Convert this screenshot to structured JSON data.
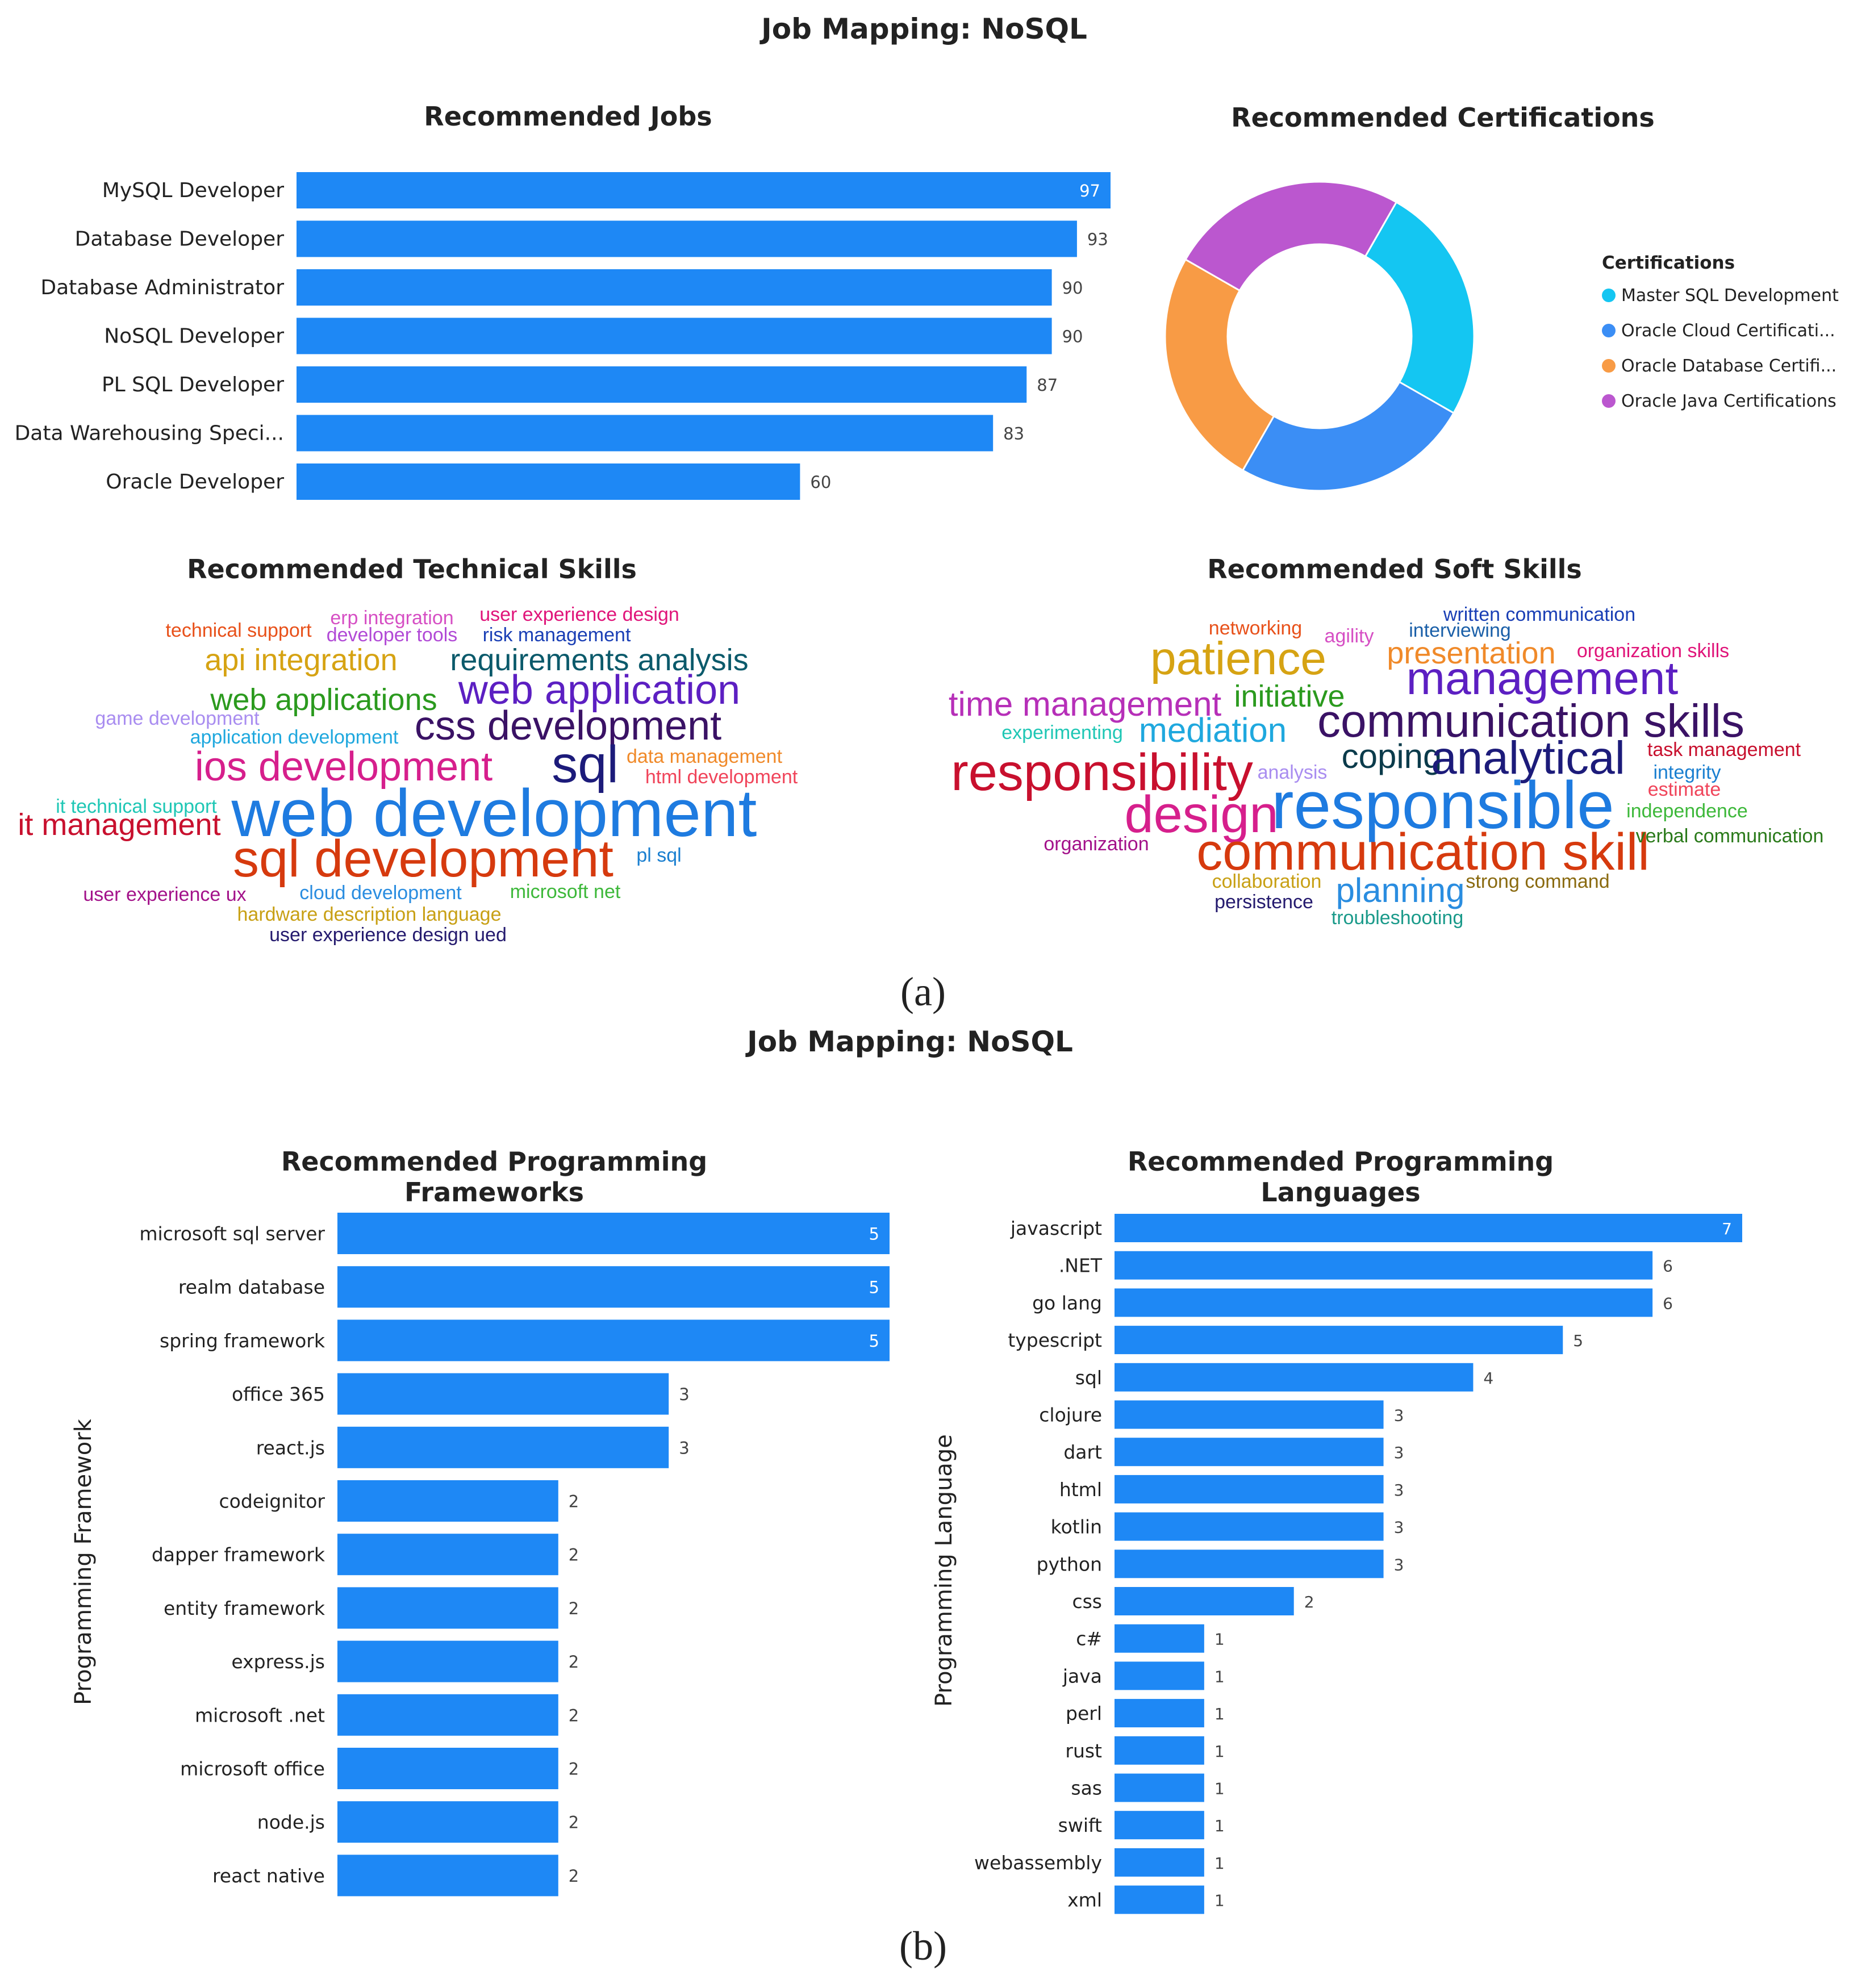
{
  "panel_a": {
    "title": "Job Mapping: NoSQL",
    "label": "(a)"
  },
  "panel_b": {
    "title": "Job Mapping: NoSQL",
    "label": "(b)"
  },
  "colors": {
    "bar": "#1e88f5",
    "cert_master_sql": "#14c6f2",
    "cert_oracle_cloud": "#3b8ef5",
    "cert_oracle_db": "#f89b45",
    "cert_oracle_java": "#bb57cf"
  },
  "chart_data": [
    {
      "id": "jobs",
      "type": "bar",
      "orientation": "horizontal",
      "title": "Recommended Jobs",
      "categories": [
        "MySQL Developer",
        "Database Developer",
        "Database Administrator",
        "NoSQL Developer",
        "PL SQL Developer",
        "Data Warehousing Speci...",
        "Oracle Developer"
      ],
      "values": [
        97,
        93,
        90,
        90,
        87,
        83,
        60
      ],
      "xlim": [
        0,
        97
      ]
    },
    {
      "id": "certifications",
      "type": "pie",
      "donut": true,
      "title": "Recommended Certifications",
      "legend_title": "Certifications",
      "legend_position": "right",
      "labels": [
        "Master SQL Development",
        "Oracle Cloud Certificati...",
        "Oracle Database Certifi...",
        "Oracle Java Certifications"
      ],
      "values": [
        25,
        25,
        25,
        25
      ]
    },
    {
      "id": "technical_skills",
      "type": "wordcloud",
      "title": "Recommended Technical Skills",
      "words": [
        {
          "text": "technical support",
          "weight": 2,
          "color": "#e8511a"
        },
        {
          "text": "erp integration",
          "weight": 2,
          "color": "#d64fc4"
        },
        {
          "text": "user experience design",
          "weight": 2,
          "color": "#e0157a"
        },
        {
          "text": "developer tools",
          "weight": 2,
          "color": "#b14ad6"
        },
        {
          "text": "risk management",
          "weight": 2,
          "color": "#1a3fb5"
        },
        {
          "text": "api integration",
          "weight": 4,
          "color": "#d6a313"
        },
        {
          "text": "requirements analysis",
          "weight": 4,
          "color": "#0b5a6b"
        },
        {
          "text": "web applications",
          "weight": 4,
          "color": "#2b9a1e"
        },
        {
          "text": "web application",
          "weight": 6,
          "color": "#5c1fc2"
        },
        {
          "text": "game development",
          "weight": 2,
          "color": "#a98df0"
        },
        {
          "text": "css development",
          "weight": 6,
          "color": "#3a1265"
        },
        {
          "text": "application development",
          "weight": 2,
          "color": "#1fa8de"
        },
        {
          "text": "ios development",
          "weight": 6,
          "color": "#d61f8c"
        },
        {
          "text": "sql",
          "weight": 8,
          "color": "#1c1b7a"
        },
        {
          "text": "data management",
          "weight": 2,
          "color": "#f08a2a"
        },
        {
          "text": "html development",
          "weight": 2,
          "color": "#f0445a"
        },
        {
          "text": "it technical support",
          "weight": 2,
          "color": "#1fc7b5"
        },
        {
          "text": "it management",
          "weight": 4,
          "color": "#c8102e"
        },
        {
          "text": "web development",
          "weight": 10,
          "color": "#1e7be0"
        },
        {
          "text": "sql development",
          "weight": 8,
          "color": "#d63a0e"
        },
        {
          "text": "pl sql",
          "weight": 2,
          "color": "#1a7fd0"
        },
        {
          "text": "user experience ux",
          "weight": 2,
          "color": "#a3128a"
        },
        {
          "text": "cloud development",
          "weight": 2,
          "color": "#2a8de0"
        },
        {
          "text": "microsoft net",
          "weight": 2,
          "color": "#3db83a"
        },
        {
          "text": "hardware description language",
          "weight": 2,
          "color": "#c8a015"
        },
        {
          "text": "user experience design ued",
          "weight": 2,
          "color": "#241a6e"
        }
      ]
    },
    {
      "id": "soft_skills",
      "type": "wordcloud",
      "title": "Recommended Soft Skills",
      "words": [
        {
          "text": "written communication",
          "weight": 2,
          "color": "#1a3fb5"
        },
        {
          "text": "networking",
          "weight": 2,
          "color": "#e8511a"
        },
        {
          "text": "agility",
          "weight": 2,
          "color": "#d64fc4"
        },
        {
          "text": "interviewing",
          "weight": 2,
          "color": "#1a5fa8"
        },
        {
          "text": "patience",
          "weight": 7,
          "color": "#d6a313"
        },
        {
          "text": "presentation",
          "weight": 4,
          "color": "#f08a2a"
        },
        {
          "text": "organization skills",
          "weight": 2,
          "color": "#e0157a"
        },
        {
          "text": "management",
          "weight": 7,
          "color": "#5c1fc2"
        },
        {
          "text": "time management",
          "weight": 5,
          "color": "#b62fb8"
        },
        {
          "text": "initiative",
          "weight": 4,
          "color": "#2b9a1e"
        },
        {
          "text": "experimenting",
          "weight": 2,
          "color": "#1fc7b5"
        },
        {
          "text": "mediation",
          "weight": 5,
          "color": "#1fa8de"
        },
        {
          "text": "communication skills",
          "weight": 7,
          "color": "#3a1265"
        },
        {
          "text": "task management",
          "weight": 2,
          "color": "#c8102e"
        },
        {
          "text": "responsibility",
          "weight": 8,
          "color": "#c8102e"
        },
        {
          "text": "analysis",
          "weight": 2,
          "color": "#a98df0"
        },
        {
          "text": "coping",
          "weight": 5,
          "color": "#0b3b4b"
        },
        {
          "text": "analytical",
          "weight": 7,
          "color": "#1c1b7a"
        },
        {
          "text": "integrity",
          "weight": 2,
          "color": "#1a7fd0"
        },
        {
          "text": "estimate",
          "weight": 2,
          "color": "#f0445a"
        },
        {
          "text": "design",
          "weight": 8,
          "color": "#d61f8c"
        },
        {
          "text": "responsible",
          "weight": 10,
          "color": "#1e7be0"
        },
        {
          "text": "independence",
          "weight": 2,
          "color": "#3db83a"
        },
        {
          "text": "organization",
          "weight": 2,
          "color": "#a3128a"
        },
        {
          "text": "communication skill",
          "weight": 8,
          "color": "#d63a0e"
        },
        {
          "text": "verbal communication",
          "weight": 2,
          "color": "#2a7a1a"
        },
        {
          "text": "collaboration",
          "weight": 2,
          "color": "#c8a015"
        },
        {
          "text": "planning",
          "weight": 5,
          "color": "#2a8de0"
        },
        {
          "text": "strong command",
          "weight": 2,
          "color": "#8a6a10"
        },
        {
          "text": "persistence",
          "weight": 2,
          "color": "#241a6e"
        },
        {
          "text": "troubleshooting",
          "weight": 2,
          "color": "#1a9a8a"
        }
      ]
    },
    {
      "id": "frameworks",
      "type": "bar",
      "orientation": "horizontal",
      "title": "Recommended Programming Frameworks",
      "ylabel": "Programming Framework",
      "categories": [
        "microsoft sql server",
        "realm database",
        "spring framework",
        "office 365",
        "react.js",
        "codeignitor",
        "dapper framework",
        "entity framework",
        "express.js",
        "microsoft .net",
        "microsoft office",
        "node.js",
        "react native"
      ],
      "values": [
        5,
        5,
        5,
        3,
        3,
        2,
        2,
        2,
        2,
        2,
        2,
        2,
        2
      ],
      "xlim": [
        0,
        5
      ]
    },
    {
      "id": "languages",
      "type": "bar",
      "orientation": "horizontal",
      "title": "Recommended Programming Languages",
      "ylabel": "Programming Language",
      "categories": [
        "javascript",
        ".NET",
        "go lang",
        "typescript",
        "sql",
        "clojure",
        "dart",
        "html",
        "kotlin",
        "python",
        "css",
        "c#",
        "java",
        "perl",
        "rust",
        "sas",
        "swift",
        "webassembly",
        "xml"
      ],
      "values": [
        7,
        6,
        6,
        5,
        4,
        3,
        3,
        3,
        3,
        3,
        2,
        1,
        1,
        1,
        1,
        1,
        1,
        1,
        1
      ],
      "xlim": [
        0,
        7
      ]
    }
  ]
}
